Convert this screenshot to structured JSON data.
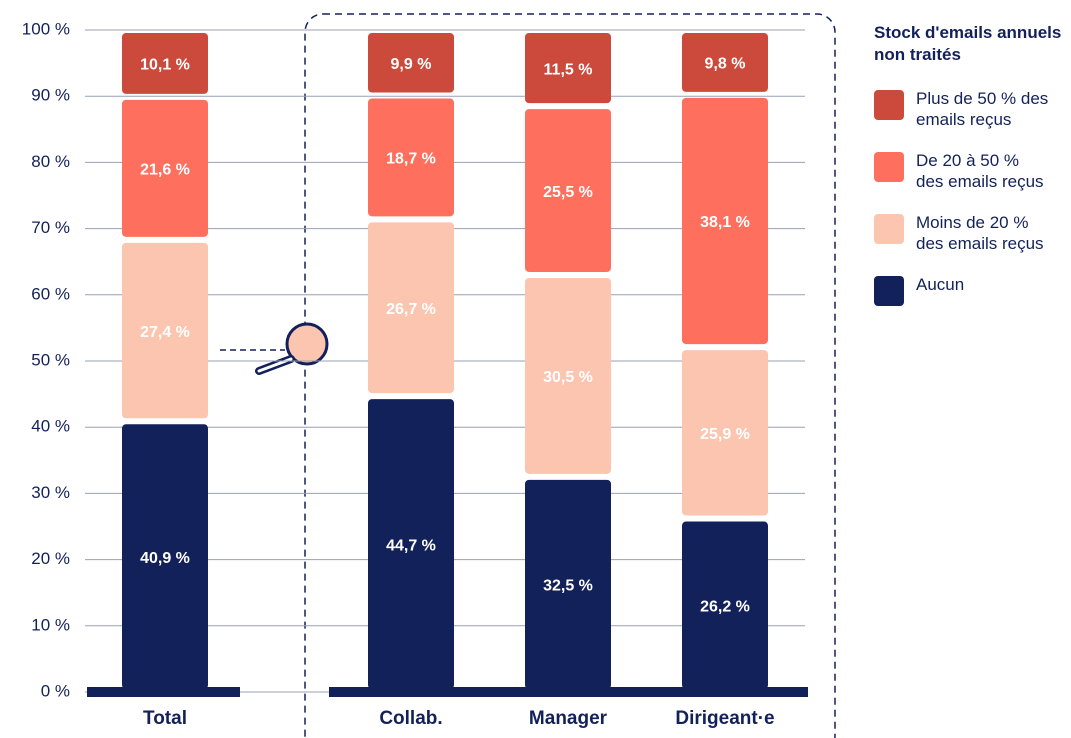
{
  "chart_data": {
    "type": "stacked-bar",
    "legend_title": "Stock d'emails annuels non traités",
    "categories": [
      "Total",
      "Collab.",
      "Manager",
      "Dirigeant·e"
    ],
    "series": [
      {
        "name": "Aucun",
        "color": "#13215a",
        "values": [
          40.9,
          44.7,
          32.5,
          26.2
        ],
        "value_labels": [
          "40,9 %",
          "44,7 %",
          "32,5 %",
          "26,2 %"
        ]
      },
      {
        "name": "Moins de 20 % des emails reçus",
        "color": "#fcc5b0",
        "values": [
          27.4,
          26.7,
          30.5,
          25.9
        ],
        "value_labels": [
          "27,4 %",
          "26,7 %",
          "30,5 %",
          "25,9 %"
        ]
      },
      {
        "name": "De 20 à 50 % des emails reçus",
        "color": "#fe6f5e",
        "values": [
          21.6,
          18.7,
          25.5,
          38.1
        ],
        "value_labels": [
          "21,6 %",
          "18,7 %",
          "25,5 %",
          "38,1 %"
        ]
      },
      {
        "name": "Plus de 50 % des emails reçus",
        "color": "#cc4a3c",
        "values": [
          10.1,
          9.9,
          11.5,
          9.8
        ],
        "value_labels": [
          "10,1 %",
          "9,9 %",
          "11,5 %",
          "9,8 %"
        ]
      }
    ],
    "ylim": [
      0,
      100
    ],
    "yticks": [
      {
        "value": 0,
        "label": "0 %"
      },
      {
        "value": 10,
        "label": "10 %"
      },
      {
        "value": 20,
        "label": "20 %"
      },
      {
        "value": 30,
        "label": "30 %"
      },
      {
        "value": 40,
        "label": "40 %"
      },
      {
        "value": 50,
        "label": "50 %"
      },
      {
        "value": 60,
        "label": "60 %"
      },
      {
        "value": 70,
        "label": "70 %"
      },
      {
        "value": 80,
        "label": "80 %"
      },
      {
        "value": 90,
        "label": "90 %"
      },
      {
        "value": 100,
        "label": "100 %"
      }
    ],
    "grid": true
  }
}
